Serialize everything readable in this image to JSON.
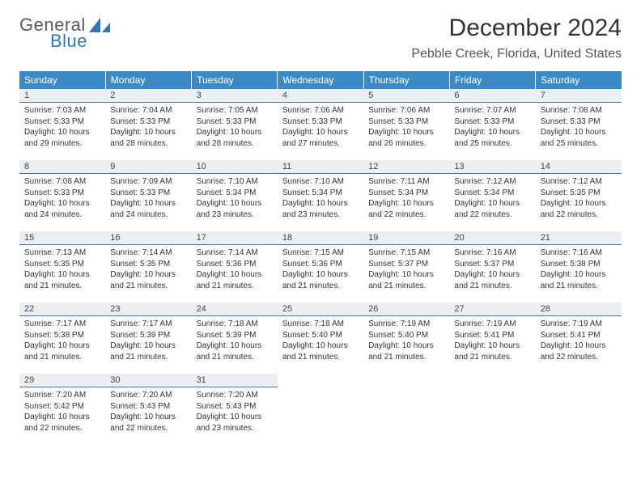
{
  "logo": {
    "text_general": "General",
    "text_blue": "Blue"
  },
  "title": "December 2024",
  "location": "Pebble Creek, Florida, United States",
  "colors": {
    "header_bg": "#3b8ac4",
    "header_text": "#ffffff",
    "daynum_bg": "#eceff1",
    "accent_line": "#2e77b8",
    "logo_gray": "#5a5a5a",
    "logo_blue": "#2e77b8",
    "body_text": "#333333"
  },
  "day_headers": [
    "Sunday",
    "Monday",
    "Tuesday",
    "Wednesday",
    "Thursday",
    "Friday",
    "Saturday"
  ],
  "weeks": [
    [
      {
        "n": "1",
        "sunrise": "7:03 AM",
        "sunset": "5:33 PM",
        "daylight": "10 hours and 29 minutes."
      },
      {
        "n": "2",
        "sunrise": "7:04 AM",
        "sunset": "5:33 PM",
        "daylight": "10 hours and 28 minutes."
      },
      {
        "n": "3",
        "sunrise": "7:05 AM",
        "sunset": "5:33 PM",
        "daylight": "10 hours and 28 minutes."
      },
      {
        "n": "4",
        "sunrise": "7:06 AM",
        "sunset": "5:33 PM",
        "daylight": "10 hours and 27 minutes."
      },
      {
        "n": "5",
        "sunrise": "7:06 AM",
        "sunset": "5:33 PM",
        "daylight": "10 hours and 26 minutes."
      },
      {
        "n": "6",
        "sunrise": "7:07 AM",
        "sunset": "5:33 PM",
        "daylight": "10 hours and 25 minutes."
      },
      {
        "n": "7",
        "sunrise": "7:08 AM",
        "sunset": "5:33 PM",
        "daylight": "10 hours and 25 minutes."
      }
    ],
    [
      {
        "n": "8",
        "sunrise": "7:08 AM",
        "sunset": "5:33 PM",
        "daylight": "10 hours and 24 minutes."
      },
      {
        "n": "9",
        "sunrise": "7:09 AM",
        "sunset": "5:33 PM",
        "daylight": "10 hours and 24 minutes."
      },
      {
        "n": "10",
        "sunrise": "7:10 AM",
        "sunset": "5:34 PM",
        "daylight": "10 hours and 23 minutes."
      },
      {
        "n": "11",
        "sunrise": "7:10 AM",
        "sunset": "5:34 PM",
        "daylight": "10 hours and 23 minutes."
      },
      {
        "n": "12",
        "sunrise": "7:11 AM",
        "sunset": "5:34 PM",
        "daylight": "10 hours and 22 minutes."
      },
      {
        "n": "13",
        "sunrise": "7:12 AM",
        "sunset": "5:34 PM",
        "daylight": "10 hours and 22 minutes."
      },
      {
        "n": "14",
        "sunrise": "7:12 AM",
        "sunset": "5:35 PM",
        "daylight": "10 hours and 22 minutes."
      }
    ],
    [
      {
        "n": "15",
        "sunrise": "7:13 AM",
        "sunset": "5:35 PM",
        "daylight": "10 hours and 21 minutes."
      },
      {
        "n": "16",
        "sunrise": "7:14 AM",
        "sunset": "5:35 PM",
        "daylight": "10 hours and 21 minutes."
      },
      {
        "n": "17",
        "sunrise": "7:14 AM",
        "sunset": "5:36 PM",
        "daylight": "10 hours and 21 minutes."
      },
      {
        "n": "18",
        "sunrise": "7:15 AM",
        "sunset": "5:36 PM",
        "daylight": "10 hours and 21 minutes."
      },
      {
        "n": "19",
        "sunrise": "7:15 AM",
        "sunset": "5:37 PM",
        "daylight": "10 hours and 21 minutes."
      },
      {
        "n": "20",
        "sunrise": "7:16 AM",
        "sunset": "5:37 PM",
        "daylight": "10 hours and 21 minutes."
      },
      {
        "n": "21",
        "sunrise": "7:16 AM",
        "sunset": "5:38 PM",
        "daylight": "10 hours and 21 minutes."
      }
    ],
    [
      {
        "n": "22",
        "sunrise": "7:17 AM",
        "sunset": "5:38 PM",
        "daylight": "10 hours and 21 minutes."
      },
      {
        "n": "23",
        "sunrise": "7:17 AM",
        "sunset": "5:39 PM",
        "daylight": "10 hours and 21 minutes."
      },
      {
        "n": "24",
        "sunrise": "7:18 AM",
        "sunset": "5:39 PM",
        "daylight": "10 hours and 21 minutes."
      },
      {
        "n": "25",
        "sunrise": "7:18 AM",
        "sunset": "5:40 PM",
        "daylight": "10 hours and 21 minutes."
      },
      {
        "n": "26",
        "sunrise": "7:19 AM",
        "sunset": "5:40 PM",
        "daylight": "10 hours and 21 minutes."
      },
      {
        "n": "27",
        "sunrise": "7:19 AM",
        "sunset": "5:41 PM",
        "daylight": "10 hours and 21 minutes."
      },
      {
        "n": "28",
        "sunrise": "7:19 AM",
        "sunset": "5:41 PM",
        "daylight": "10 hours and 22 minutes."
      }
    ],
    [
      {
        "n": "29",
        "sunrise": "7:20 AM",
        "sunset": "5:42 PM",
        "daylight": "10 hours and 22 minutes."
      },
      {
        "n": "30",
        "sunrise": "7:20 AM",
        "sunset": "5:43 PM",
        "daylight": "10 hours and 22 minutes."
      },
      {
        "n": "31",
        "sunrise": "7:20 AM",
        "sunset": "5:43 PM",
        "daylight": "10 hours and 23 minutes."
      },
      null,
      null,
      null,
      null
    ]
  ],
  "labels": {
    "sunrise": "Sunrise:",
    "sunset": "Sunset:",
    "daylight": "Daylight:"
  }
}
